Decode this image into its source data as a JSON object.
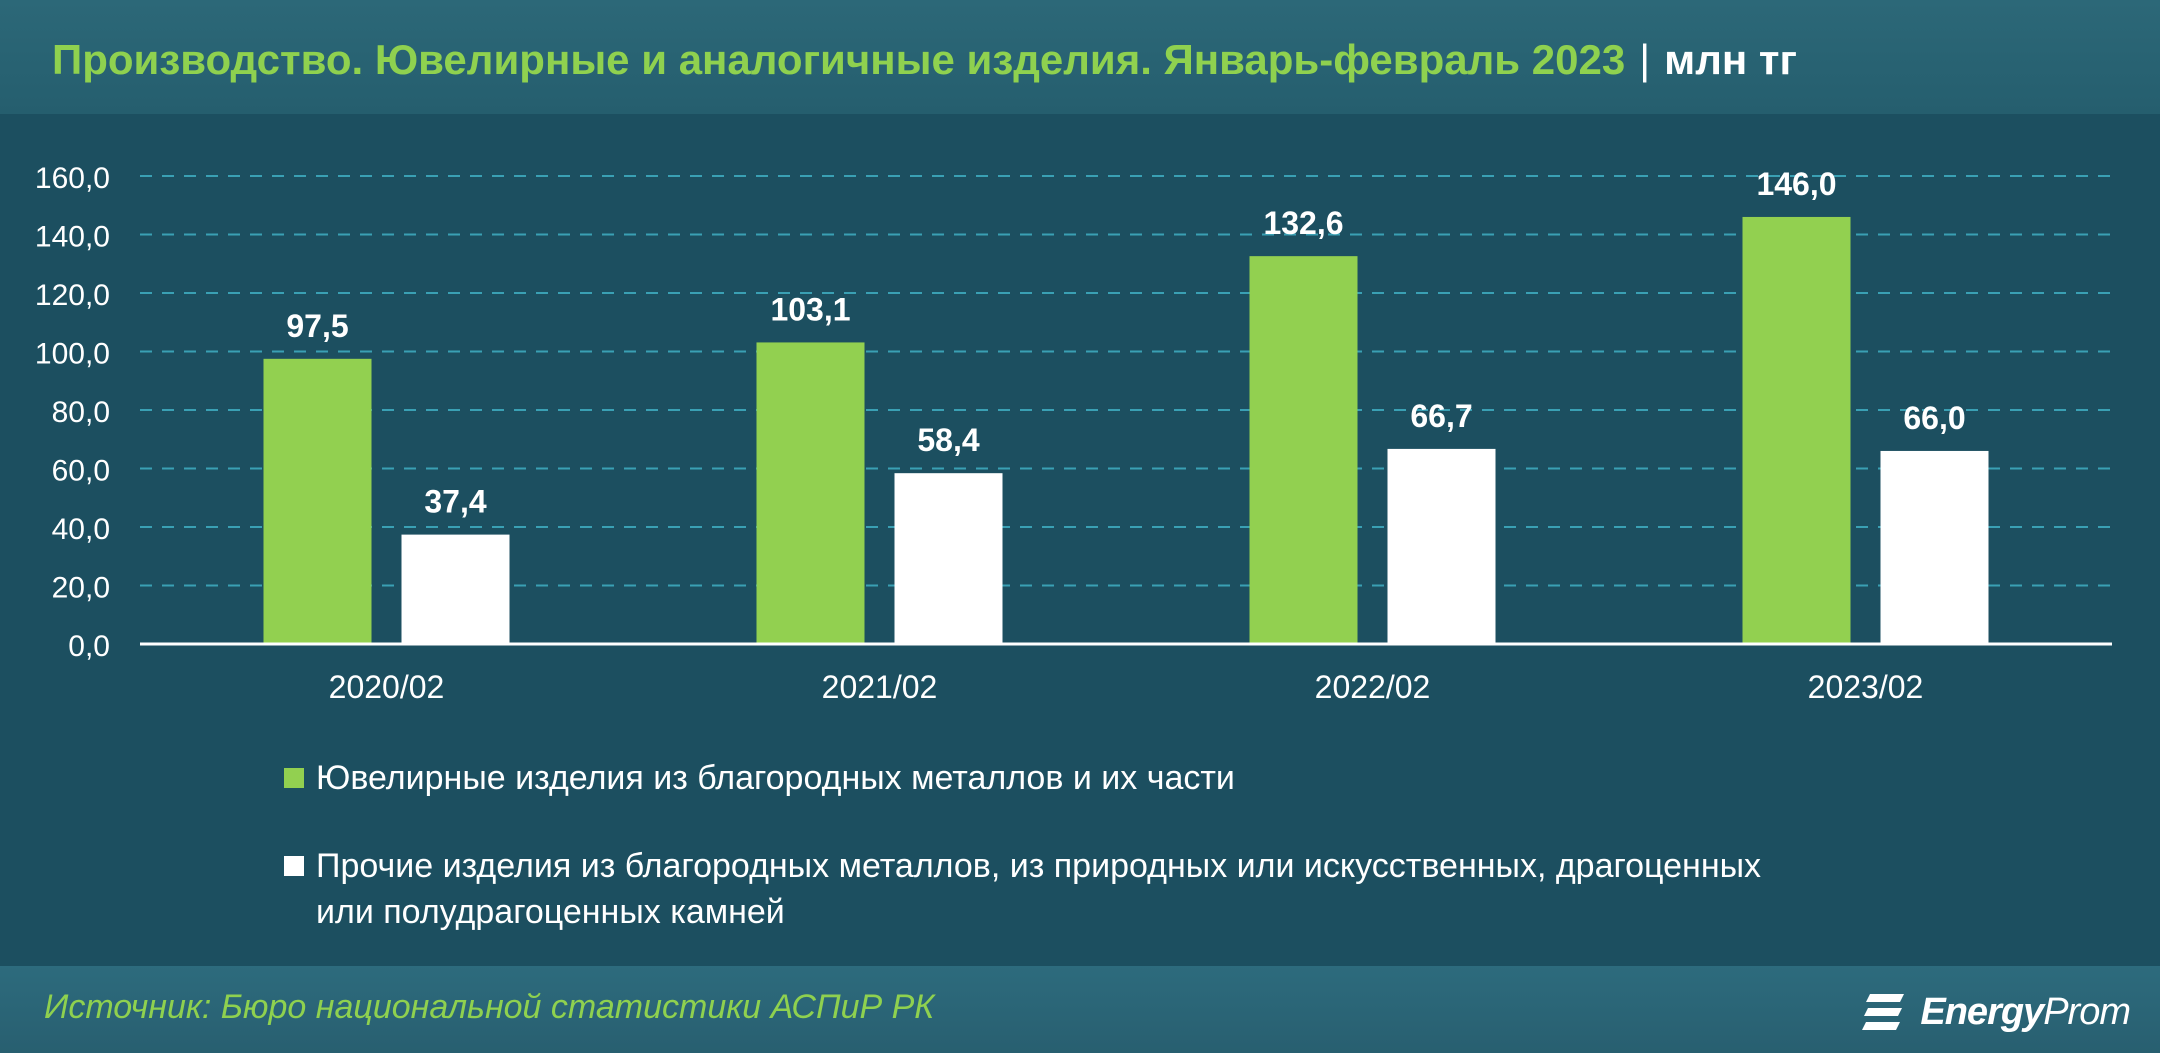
{
  "header": {
    "title": "Производство. Ювелирные и аналогичные изделия. Январь-февраль 2023",
    "separator": "|",
    "unit": "млн тг"
  },
  "chart_data": {
    "type": "bar",
    "categories": [
      "2020/02",
      "2021/02",
      "2022/02",
      "2023/02"
    ],
    "series": [
      {
        "name": "Ювелирные изделия из благородных металлов и их части",
        "color": "#92d050",
        "values": [
          97.5,
          103.1,
          132.6,
          146.0
        ],
        "labels": [
          "97,5",
          "103,1",
          "132,6",
          "146,0"
        ]
      },
      {
        "name": "Прочие изделия из благородных металлов, из природных или искусственных, драгоценных или полудрагоценных камней",
        "color": "#ffffff",
        "values": [
          37.4,
          58.4,
          66.7,
          66.0
        ],
        "labels": [
          "37,4",
          "58,4",
          "66,7",
          "66,0"
        ]
      }
    ],
    "ylim": [
      0,
      160
    ],
    "yticks": [
      "0,0",
      "20,0",
      "40,0",
      "60,0",
      "80,0",
      "100,0",
      "120,0",
      "140,0",
      "160,0"
    ],
    "grid": true,
    "legend": "bottom"
  },
  "legend": {
    "item1": "Ювелирные изделия из благородных металлов и их части",
    "item2_line1": "Прочие изделия из благородных металлов, из природных или искусственных, драгоценных",
    "item2_line2": "или полудрагоценных камней"
  },
  "footer": {
    "source": "Источник: Бюро национальной статистики АСПиР РК",
    "logo_bold": "Energy",
    "logo_light": "Prom"
  }
}
